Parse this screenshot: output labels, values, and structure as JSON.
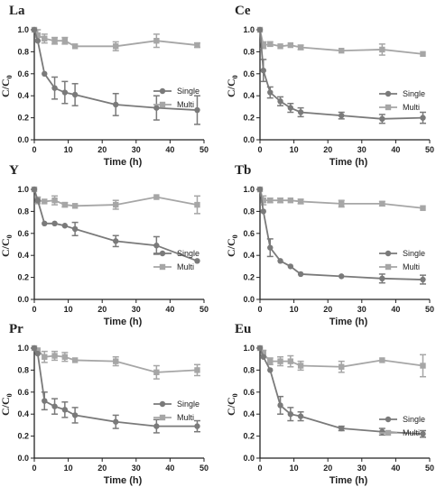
{
  "figure": {
    "ylabel_main": "C/C",
    "ylabel_sub": "0",
    "xlabel": "Time (h)"
  },
  "colors": {
    "single": "#7a7a7a",
    "multi": "#a6a6a6",
    "axis": "#222222"
  },
  "chart_data": [
    {
      "type": "line",
      "title": "La",
      "xlabel": "Time (h)",
      "ylabel": "C/C0",
      "xlim": [
        0,
        50
      ],
      "ylim": [
        0,
        1.0
      ],
      "xticks": [
        0,
        10,
        20,
        30,
        40,
        50
      ],
      "yticks": [
        0,
        0.2,
        0.4,
        0.6,
        0.8,
        1.0
      ],
      "legend": "right",
      "x": [
        0,
        1,
        3,
        6,
        9,
        12,
        24,
        36,
        48
      ],
      "series": [
        {
          "name": "Single",
          "marker": "circle",
          "values": [
            1.0,
            0.9,
            0.6,
            0.47,
            0.43,
            0.41,
            0.32,
            0.29,
            0.27
          ],
          "errors": [
            0.0,
            0.0,
            0.0,
            0.1,
            0.1,
            0.1,
            0.1,
            0.11,
            0.13
          ]
        },
        {
          "name": "Multi",
          "marker": "square",
          "values": [
            1.0,
            0.95,
            0.92,
            0.9,
            0.9,
            0.85,
            0.85,
            0.9,
            0.86
          ],
          "errors": [
            0.0,
            0.05,
            0.04,
            0.03,
            0.03,
            0.0,
            0.04,
            0.06,
            0.02
          ]
        }
      ]
    },
    {
      "type": "line",
      "title": "Ce",
      "xlabel": "Time (h)",
      "ylabel": "C/C0",
      "xlim": [
        0,
        50
      ],
      "ylim": [
        0,
        1.0
      ],
      "xticks": [
        0,
        10,
        20,
        30,
        40,
        50
      ],
      "yticks": [
        0,
        0.2,
        0.4,
        0.6,
        0.8,
        1.0
      ],
      "legend": "right",
      "x": [
        0,
        1,
        3,
        6,
        9,
        12,
        24,
        36,
        48
      ],
      "series": [
        {
          "name": "Single",
          "marker": "circle",
          "values": [
            1.0,
            0.63,
            0.43,
            0.35,
            0.29,
            0.25,
            0.22,
            0.19,
            0.2
          ],
          "errors": [
            0.0,
            0.1,
            0.05,
            0.04,
            0.04,
            0.04,
            0.03,
            0.04,
            0.05
          ]
        },
        {
          "name": "Multi",
          "marker": "square",
          "values": [
            1.0,
            0.86,
            0.87,
            0.85,
            0.86,
            0.84,
            0.81,
            0.82,
            0.78
          ],
          "errors": [
            0.0,
            0.03,
            0.02,
            0.0,
            0.0,
            0.02,
            0.0,
            0.05,
            0.0
          ]
        }
      ]
    },
    {
      "type": "line",
      "title": "Y",
      "xlabel": "Time (h)",
      "ylabel": "C/C0",
      "xlim": [
        0,
        50
      ],
      "ylim": [
        0,
        1.0
      ],
      "xticks": [
        0,
        10,
        20,
        30,
        40,
        50
      ],
      "yticks": [
        0,
        0.2,
        0.4,
        0.6,
        0.8,
        1.0
      ],
      "legend": "right",
      "x": [
        0,
        1,
        3,
        6,
        9,
        12,
        24,
        36,
        48
      ],
      "series": [
        {
          "name": "Single",
          "marker": "circle",
          "values": [
            1.0,
            0.9,
            0.69,
            0.69,
            0.67,
            0.64,
            0.53,
            0.49,
            0.35
          ],
          "errors": [
            0.0,
            0.0,
            0.0,
            0.0,
            0.0,
            0.06,
            0.05,
            0.08,
            0.0
          ]
        },
        {
          "name": "Multi",
          "marker": "square",
          "values": [
            1.0,
            0.9,
            0.89,
            0.9,
            0.86,
            0.85,
            0.86,
            0.93,
            0.86
          ],
          "errors": [
            0.0,
            0.03,
            0.0,
            0.04,
            0.02,
            0.0,
            0.04,
            0.0,
            0.08
          ]
        }
      ]
    },
    {
      "type": "line",
      "title": "Tb",
      "xlabel": "Time (h)",
      "ylabel": "C/C0",
      "xlim": [
        0,
        50
      ],
      "ylim": [
        0,
        1.0
      ],
      "xticks": [
        0,
        10,
        20,
        30,
        40,
        50
      ],
      "yticks": [
        0,
        0.2,
        0.4,
        0.6,
        0.8,
        1.0
      ],
      "legend": "right",
      "x": [
        0,
        1,
        3,
        6,
        9,
        12,
        24,
        36,
        48
      ],
      "series": [
        {
          "name": "Single",
          "marker": "circle",
          "values": [
            1.0,
            0.8,
            0.47,
            0.35,
            0.3,
            0.23,
            0.21,
            0.19,
            0.18
          ],
          "errors": [
            0.0,
            0.0,
            0.08,
            0.0,
            0.0,
            0.0,
            0.0,
            0.04,
            0.04
          ]
        },
        {
          "name": "Multi",
          "marker": "square",
          "values": [
            1.0,
            0.9,
            0.9,
            0.9,
            0.9,
            0.89,
            0.87,
            0.87,
            0.83
          ],
          "errors": [
            0.0,
            0.04,
            0.02,
            0.02,
            0.0,
            0.02,
            0.03,
            0.02,
            0.0
          ]
        }
      ]
    },
    {
      "type": "line",
      "title": "Pr",
      "xlabel": "Time (h)",
      "ylabel": "C/C0",
      "xlim": [
        0,
        50
      ],
      "ylim": [
        0,
        1.0
      ],
      "xticks": [
        0,
        10,
        20,
        30,
        40,
        50
      ],
      "yticks": [
        0,
        0.2,
        0.4,
        0.6,
        0.8,
        1.0
      ],
      "legend": "right",
      "x": [
        0,
        1,
        3,
        6,
        9,
        12,
        24,
        36,
        48
      ],
      "series": [
        {
          "name": "Single",
          "marker": "circle",
          "values": [
            1.0,
            0.95,
            0.52,
            0.47,
            0.44,
            0.39,
            0.33,
            0.29,
            0.29
          ],
          "errors": [
            0.0,
            0.0,
            0.08,
            0.07,
            0.07,
            0.07,
            0.06,
            0.06,
            0.05
          ]
        },
        {
          "name": "Multi",
          "marker": "square",
          "values": [
            1.0,
            0.98,
            0.92,
            0.93,
            0.92,
            0.89,
            0.88,
            0.78,
            0.8
          ],
          "errors": [
            0.0,
            0.0,
            0.05,
            0.04,
            0.04,
            0.0,
            0.04,
            0.06,
            0.05
          ]
        }
      ]
    },
    {
      "type": "line",
      "title": "Eu",
      "xlabel": "Time (h)",
      "ylabel": "C/C0",
      "xlim": [
        0,
        50
      ],
      "ylim": [
        0,
        1.0
      ],
      "xticks": [
        0,
        10,
        20,
        30,
        40,
        50
      ],
      "yticks": [
        0,
        0.2,
        0.4,
        0.6,
        0.8,
        1.0
      ],
      "legend": "right",
      "x": [
        0,
        1,
        3,
        6,
        9,
        12,
        24,
        36,
        48
      ],
      "series": [
        {
          "name": "Single",
          "marker": "circle",
          "values": [
            1.0,
            0.92,
            0.8,
            0.48,
            0.4,
            0.38,
            0.27,
            0.24,
            0.22
          ],
          "errors": [
            0.0,
            0.0,
            0.0,
            0.08,
            0.06,
            0.04,
            0.02,
            0.03,
            0.03
          ]
        },
        {
          "name": "Multi",
          "marker": "square",
          "values": [
            1.0,
            0.95,
            0.88,
            0.88,
            0.88,
            0.84,
            0.83,
            0.89,
            0.84
          ],
          "errors": [
            0.0,
            0.03,
            0.03,
            0.04,
            0.05,
            0.04,
            0.05,
            0.0,
            0.1
          ]
        }
      ]
    }
  ]
}
